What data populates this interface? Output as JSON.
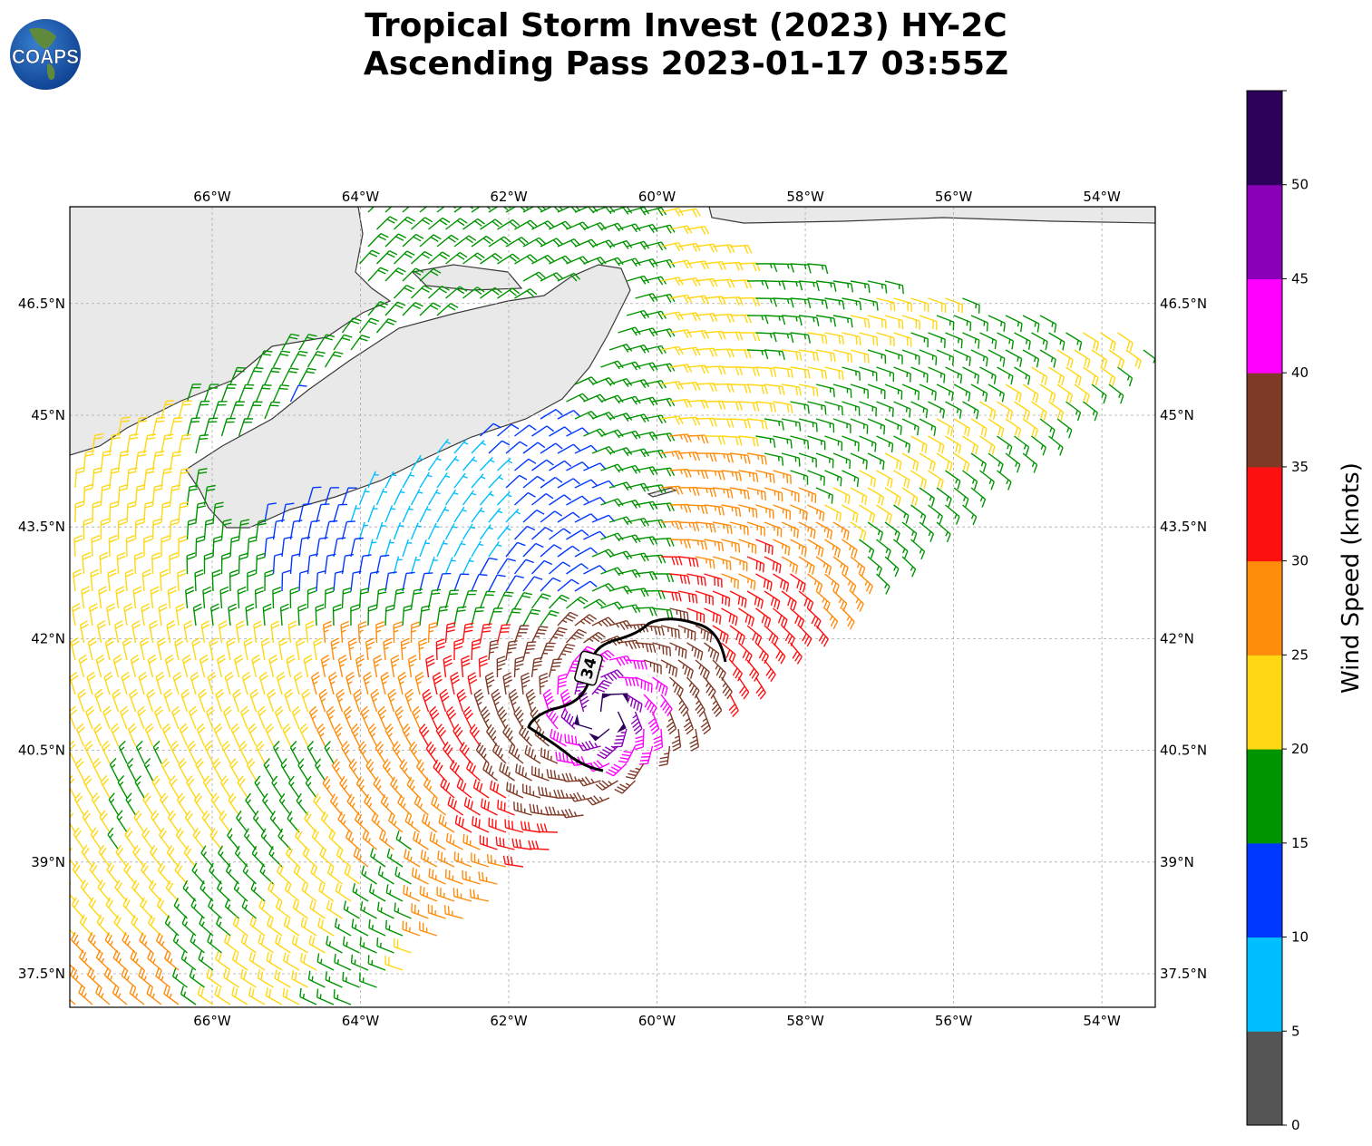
{
  "title": {
    "line1": "Tropical Storm Invest (2023) HY-2C",
    "line2": "Ascending Pass 2023-01-17 03:55Z"
  },
  "logo": {
    "text": "COAPS"
  },
  "map": {
    "lon_labels": [
      "66°W",
      "64°W",
      "62°W",
      "60°W",
      "58°W",
      "56°W",
      "54°W"
    ],
    "lon_values": [
      -66,
      -64,
      -62,
      -60,
      -58,
      -56,
      -54
    ],
    "lat_labels": [
      "46.5°N",
      "45°N",
      "43.5°N",
      "42°N",
      "40.5°N",
      "39°N",
      "37.5°N"
    ],
    "lat_values": [
      46.5,
      45,
      43.5,
      42,
      40.5,
      39,
      37.5
    ],
    "extent": {
      "lon": [
        -67.92,
        -53.28
      ],
      "lat": [
        37.05,
        47.8
      ]
    },
    "storm_center": {
      "lon": -60.72,
      "lat": 41.0
    },
    "contour_label": "34",
    "gridlines": true
  },
  "colorbar": {
    "label": "Wind Speed (knots)",
    "tick_labels": [
      "0",
      "5",
      "10",
      "15",
      "20",
      "25",
      "30",
      "35",
      "40",
      "45",
      "50"
    ],
    "bins": [
      {
        "min": 0,
        "max": 5,
        "color": "#555555"
      },
      {
        "min": 5,
        "max": 10,
        "color": "#00bfff"
      },
      {
        "min": 10,
        "max": 15,
        "color": "#0038ff"
      },
      {
        "min": 15,
        "max": 20,
        "color": "#009400"
      },
      {
        "min": 20,
        "max": 25,
        "color": "#ffd712"
      },
      {
        "min": 25,
        "max": 30,
        "color": "#ff8c0a"
      },
      {
        "min": 30,
        "max": 35,
        "color": "#ff1010"
      },
      {
        "min": 35,
        "max": 40,
        "color": "#7e3a26"
      },
      {
        "min": 40,
        "max": 45,
        "color": "#ff00ff"
      },
      {
        "min": 45,
        "max": 50,
        "color": "#8a00b8"
      },
      {
        "min": 50,
        "max": 55,
        "color": "#2d005a"
      }
    ]
  }
}
